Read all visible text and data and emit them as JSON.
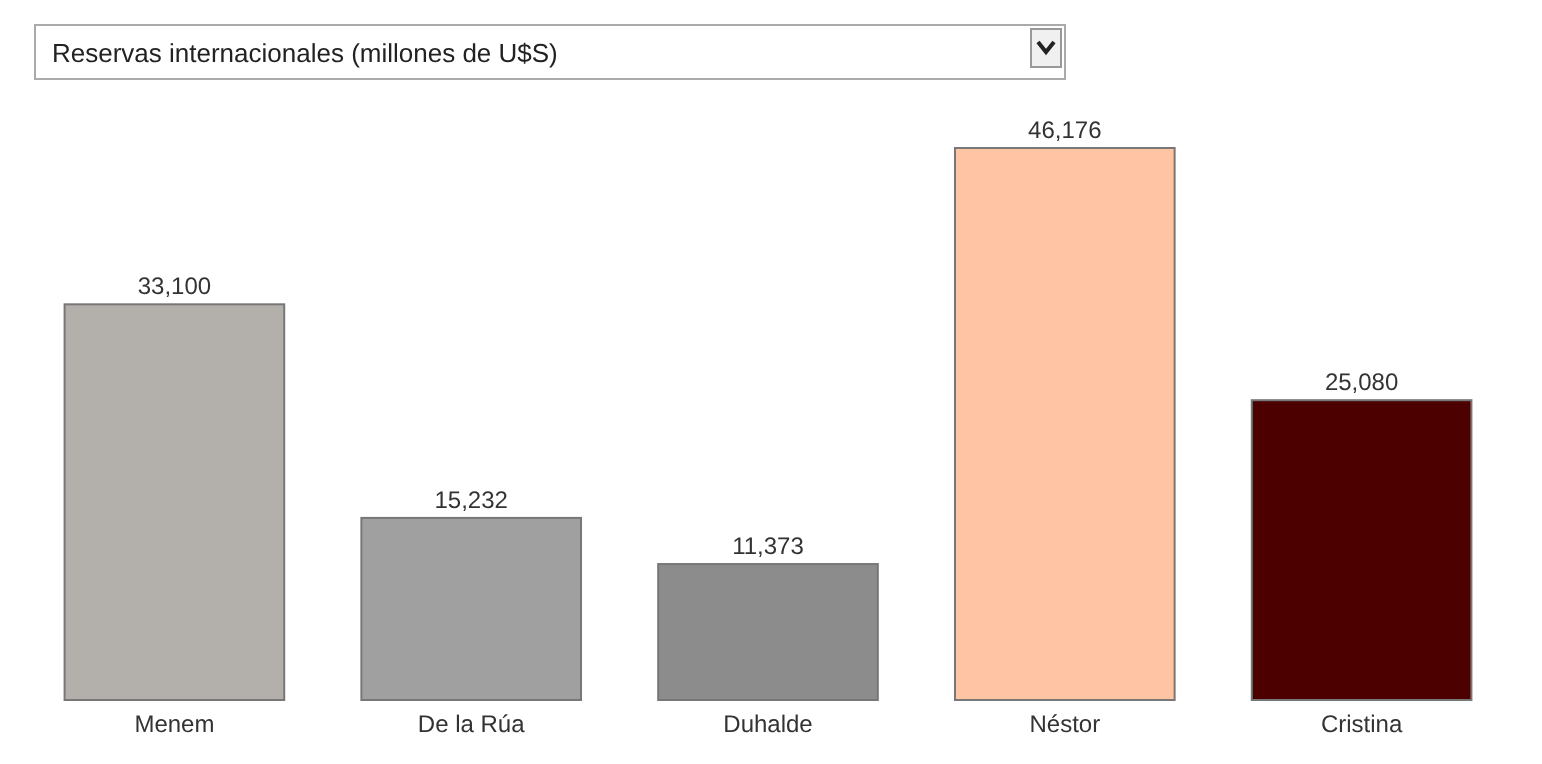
{
  "chart_data": {
    "type": "bar",
    "title": "Reservas internacionales (millones de U$S)",
    "categories": [
      "Menem",
      "De la Rúa",
      "Duhalde",
      "Néstor",
      "Cristina"
    ],
    "values": [
      33100,
      15232,
      11373,
      46176,
      25080
    ],
    "colors": [
      "#b3afab",
      "#a0a0a0",
      "#8c8c8c",
      "#ffc4a3",
      "#4d0000"
    ],
    "value_labels": [
      "33,100",
      "15,232",
      "11,373",
      "46,176",
      "25,080"
    ]
  }
}
